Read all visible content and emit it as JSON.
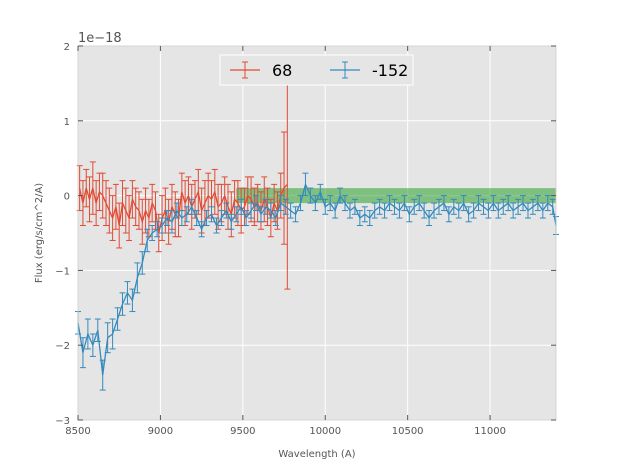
{
  "chart_data": {
    "type": "line",
    "title": "",
    "xlabel": "Wavelength (A)",
    "ylabel": "Flux (erg/s/cm^2/A)",
    "xlim": [
      8500,
      11400
    ],
    "ylim": [
      -3,
      2
    ],
    "y_offset_text": "1e−18",
    "xticks": [
      8500,
      9000,
      9500,
      10000,
      10500,
      11000
    ],
    "xtick_labels": [
      "8500",
      "9000",
      "9500",
      "10000",
      "10500",
      "11000"
    ],
    "yticks": [
      -3,
      -2,
      -1,
      0,
      1,
      2
    ],
    "ytick_labels": [
      "−3",
      "−2",
      "−1",
      "0",
      "1",
      "2"
    ],
    "grid": true,
    "legend": {
      "placement": "top-center",
      "entries": [
        "68",
        "-152"
      ]
    },
    "shaded_band": {
      "x": [
        9460,
        11400
      ],
      "y": [
        -0.1,
        0.1
      ],
      "color": "#2ca02c"
    },
    "series": [
      {
        "name": "68",
        "color": "#e24a33",
        "x": [
          8510,
          8530,
          8550,
          8570,
          8590,
          8610,
          8630,
          8650,
          8670,
          8690,
          8710,
          8730,
          8750,
          8770,
          8790,
          8810,
          8830,
          8850,
          8870,
          8890,
          8910,
          8930,
          8950,
          8970,
          8990,
          9010,
          9030,
          9050,
          9070,
          9090,
          9110,
          9130,
          9150,
          9170,
          9190,
          9210,
          9230,
          9250,
          9270,
          9290,
          9310,
          9330,
          9350,
          9370,
          9390,
          9410,
          9430,
          9450,
          9470,
          9490,
          9510,
          9530,
          9550,
          9570,
          9590,
          9610,
          9630,
          9650,
          9670,
          9690,
          9710,
          9730,
          9750,
          9770
        ],
        "y": [
          0.1,
          -0.1,
          0.1,
          -0.05,
          0.1,
          -0.1,
          0.05,
          0.0,
          -0.1,
          -0.2,
          -0.3,
          -0.15,
          -0.4,
          -0.1,
          -0.2,
          -0.3,
          -0.05,
          -0.15,
          -0.2,
          -0.35,
          -0.2,
          -0.3,
          -0.1,
          -0.2,
          -0.5,
          -0.3,
          -0.2,
          -0.35,
          -0.15,
          -0.25,
          -0.3,
          0.05,
          -0.1,
          0.0,
          -0.15,
          -0.05,
          0.05,
          -0.2,
          -0.1,
          0.0,
          -0.05,
          0.05,
          -0.15,
          -0.1,
          0.0,
          -0.15,
          -0.25,
          -0.05,
          -0.1,
          -0.2,
          -0.15,
          0.0,
          -0.05,
          -0.15,
          -0.1,
          -0.2,
          -0.05,
          -0.15,
          -0.3,
          -0.1,
          -0.2,
          0.0,
          0.1,
          0.15
        ],
        "err": [
          0.3,
          0.3,
          0.25,
          0.3,
          0.35,
          0.3,
          0.25,
          0.3,
          0.3,
          0.3,
          0.3,
          0.3,
          0.3,
          0.3,
          0.3,
          0.3,
          0.25,
          0.25,
          0.25,
          0.3,
          0.3,
          0.25,
          0.25,
          0.25,
          0.25,
          0.3,
          0.3,
          0.3,
          0.3,
          0.3,
          0.25,
          0.25,
          0.3,
          0.25,
          0.3,
          0.25,
          0.3,
          0.3,
          0.3,
          0.3,
          0.25,
          0.3,
          0.3,
          0.25,
          0.25,
          0.3,
          0.3,
          0.25,
          0.3,
          0.3,
          0.25,
          0.25,
          0.3,
          0.25,
          0.25,
          0.25,
          0.3,
          0.25,
          0.25,
          0.25,
          0.25,
          0.3,
          0.75,
          1.4
        ]
      },
      {
        "name": "-152",
        "color": "#348abd",
        "x": [
          8500,
          8530,
          8560,
          8590,
          8620,
          8650,
          8680,
          8710,
          8740,
          8770,
          8800,
          8830,
          8860,
          8890,
          8920,
          8950,
          8980,
          9010,
          9040,
          9070,
          9100,
          9130,
          9160,
          9190,
          9220,
          9250,
          9280,
          9310,
          9340,
          9370,
          9400,
          9430,
          9460,
          9490,
          9520,
          9550,
          9580,
          9610,
          9640,
          9670,
          9700,
          9730,
          9760,
          9790,
          9820,
          9850,
          9880,
          9910,
          9940,
          9970,
          10000,
          10030,
          10060,
          10090,
          10120,
          10150,
          10180,
          10210,
          10240,
          10270,
          10300,
          10330,
          10360,
          10390,
          10420,
          10450,
          10480,
          10510,
          10540,
          10570,
          10600,
          10630,
          10660,
          10690,
          10720,
          10750,
          10780,
          10810,
          10840,
          10870,
          10900,
          10930,
          10960,
          10990,
          11020,
          11050,
          11080,
          11110,
          11140,
          11170,
          11200,
          11230,
          11260,
          11290,
          11320,
          11350,
          11380,
          11400
        ],
        "y": [
          -1.7,
          -2.1,
          -1.85,
          -2.0,
          -1.8,
          -2.4,
          -1.9,
          -1.85,
          -1.65,
          -1.45,
          -1.3,
          -1.4,
          -1.1,
          -0.9,
          -0.6,
          -0.5,
          -0.45,
          -0.4,
          -0.3,
          -0.35,
          -0.2,
          -0.3,
          -0.25,
          -0.15,
          -0.3,
          -0.45,
          -0.3,
          -0.25,
          -0.4,
          -0.3,
          -0.2,
          -0.35,
          -0.25,
          -0.15,
          -0.3,
          -0.2,
          -0.1,
          -0.25,
          -0.15,
          -0.2,
          -0.3,
          -0.1,
          -0.15,
          -0.2,
          -0.25,
          -0.1,
          0.15,
          0.0,
          -0.1,
          0.05,
          -0.15,
          -0.1,
          -0.2,
          0.0,
          -0.1,
          -0.2,
          -0.15,
          -0.3,
          -0.25,
          -0.3,
          -0.2,
          -0.15,
          -0.2,
          -0.1,
          -0.15,
          -0.2,
          -0.1,
          -0.25,
          -0.15,
          -0.1,
          -0.2,
          -0.3,
          -0.2,
          -0.15,
          -0.1,
          -0.25,
          -0.15,
          -0.2,
          -0.1,
          -0.25,
          -0.2,
          -0.1,
          -0.15,
          -0.2,
          -0.1,
          -0.2,
          -0.15,
          -0.1,
          -0.2,
          -0.15,
          -0.1,
          -0.2,
          -0.15,
          -0.1,
          -0.2,
          -0.1,
          -0.15,
          -0.4
        ],
        "err": [
          0.15,
          0.2,
          0.2,
          0.15,
          0.15,
          0.2,
          0.2,
          0.2,
          0.15,
          0.15,
          0.15,
          0.15,
          0.2,
          0.15,
          0.15,
          0.1,
          0.1,
          0.1,
          0.1,
          0.15,
          0.1,
          0.1,
          0.1,
          0.1,
          0.1,
          0.1,
          0.1,
          0.1,
          0.1,
          0.1,
          0.1,
          0.1,
          0.1,
          0.1,
          0.1,
          0.1,
          0.1,
          0.1,
          0.1,
          0.1,
          0.1,
          0.1,
          0.1,
          0.1,
          0.1,
          0.1,
          0.15,
          0.1,
          0.1,
          0.1,
          0.1,
          0.1,
          0.1,
          0.1,
          0.1,
          0.1,
          0.1,
          0.1,
          0.1,
          0.1,
          0.1,
          0.1,
          0.1,
          0.1,
          0.1,
          0.1,
          0.1,
          0.1,
          0.1,
          0.1,
          0.1,
          0.1,
          0.1,
          0.1,
          0.1,
          0.1,
          0.1,
          0.1,
          0.1,
          0.1,
          0.1,
          0.1,
          0.1,
          0.1,
          0.1,
          0.1,
          0.1,
          0.1,
          0.1,
          0.1,
          0.1,
          0.1,
          0.1,
          0.1,
          0.1,
          0.1,
          0.1,
          0.12
        ]
      }
    ]
  }
}
